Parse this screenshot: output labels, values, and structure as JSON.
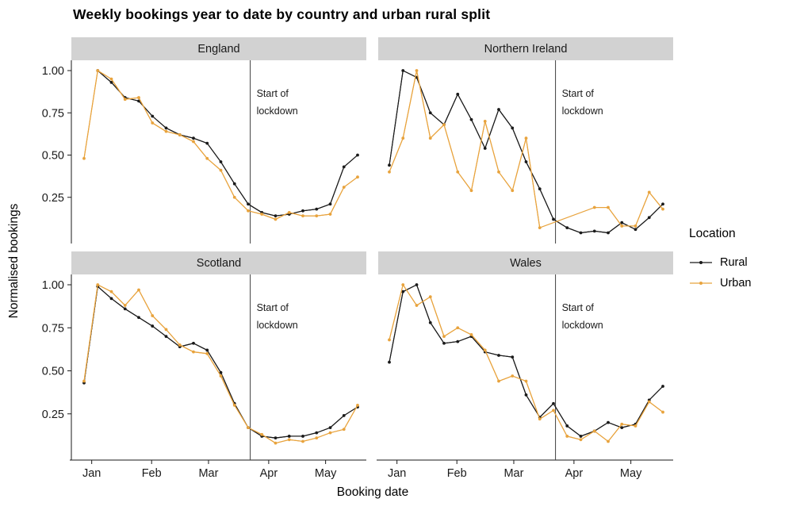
{
  "title": "Weekly bookings year to date by country and urban rural split",
  "axes": {
    "x_label": "Booking date",
    "y_label": "Normalised bookings",
    "x_ticks": [
      "Jan",
      "Feb",
      "Mar",
      "Apr",
      "May"
    ],
    "y_ticks": [
      {
        "label": "1.00",
        "value": 1.0
      },
      {
        "label": "0.75",
        "value": 0.75
      },
      {
        "label": "0.50",
        "value": 0.5
      },
      {
        "label": "0.25",
        "value": 0.25
      }
    ]
  },
  "legend": {
    "title": "Location",
    "items": [
      {
        "label": "Rural",
        "color": "#1a1a1a"
      },
      {
        "label": "Urban",
        "color": "#e8a33d"
      }
    ]
  },
  "annotation": {
    "line1": "Start of",
    "line2": "lockdown"
  },
  "chart_data": {
    "type": "line",
    "x_unit": "weekly points, Jan to late May",
    "n_points": 21,
    "x_tick_week_positions": [
      0.56,
      4.94,
      9.1,
      13.5,
      17.66
    ],
    "lockdown_week_index": 12.15,
    "ylim": [
      0,
      1.05
    ],
    "grid": false,
    "facets": [
      {
        "label": "England",
        "series": [
          {
            "name": "Rural",
            "values": [
              null,
              1.0,
              0.93,
              0.84,
              0.82,
              0.73,
              0.66,
              0.62,
              0.6,
              0.57,
              0.46,
              0.33,
              0.21,
              0.16,
              0.14,
              0.15,
              0.17,
              0.18,
              0.21,
              0.43,
              0.5
            ]
          },
          {
            "name": "Urban",
            "values": [
              0.48,
              1.0,
              0.95,
              0.83,
              0.84,
              0.69,
              0.64,
              0.62,
              0.58,
              0.48,
              0.41,
              0.25,
              0.17,
              0.15,
              0.12,
              0.16,
              0.14,
              0.14,
              0.15,
              0.31,
              0.37
            ]
          }
        ]
      },
      {
        "label": "Northern Ireland",
        "series": [
          {
            "name": "Rural",
            "values": [
              0.44,
              1.0,
              0.96,
              0.75,
              0.68,
              0.86,
              0.71,
              0.54,
              0.77,
              0.66,
              0.46,
              0.3,
              0.12,
              0.07,
              0.04,
              0.05,
              0.04,
              0.1,
              0.06,
              0.13,
              0.21
            ]
          },
          {
            "name": "Urban",
            "values": [
              0.4,
              0.6,
              1.0,
              0.6,
              0.68,
              0.4,
              0.29,
              0.7,
              0.4,
              0.29,
              0.6,
              0.07,
              null,
              null,
              null,
              0.19,
              0.19,
              0.08,
              0.08,
              0.28,
              0.18
            ]
          }
        ]
      },
      {
        "label": "Scotland",
        "series": [
          {
            "name": "Rural",
            "values": [
              0.43,
              0.99,
              0.92,
              0.86,
              0.81,
              0.76,
              0.7,
              0.64,
              0.66,
              0.62,
              0.49,
              0.31,
              0.17,
              0.12,
              0.11,
              0.12,
              0.12,
              0.14,
              0.17,
              0.24,
              0.29
            ]
          },
          {
            "name": "Urban",
            "values": [
              0.44,
              1.0,
              0.96,
              0.88,
              0.97,
              0.82,
              0.74,
              0.65,
              0.61,
              0.6,
              0.47,
              0.3,
              0.17,
              0.13,
              0.08,
              0.1,
              0.09,
              0.11,
              0.14,
              0.16,
              0.3
            ]
          }
        ]
      },
      {
        "label": "Wales",
        "series": [
          {
            "name": "Rural",
            "values": [
              0.55,
              0.96,
              1.0,
              0.78,
              0.66,
              0.67,
              0.7,
              0.61,
              0.59,
              0.58,
              0.36,
              0.23,
              0.31,
              0.18,
              0.12,
              0.15,
              0.2,
              0.17,
              0.19,
              0.33,
              0.41
            ]
          },
          {
            "name": "Urban",
            "values": [
              0.68,
              1.0,
              0.88,
              0.93,
              0.7,
              0.75,
              0.71,
              0.62,
              0.44,
              0.47,
              0.44,
              0.22,
              0.27,
              0.12,
              0.1,
              0.15,
              0.09,
              0.19,
              0.18,
              0.32,
              0.26
            ]
          }
        ]
      }
    ]
  }
}
